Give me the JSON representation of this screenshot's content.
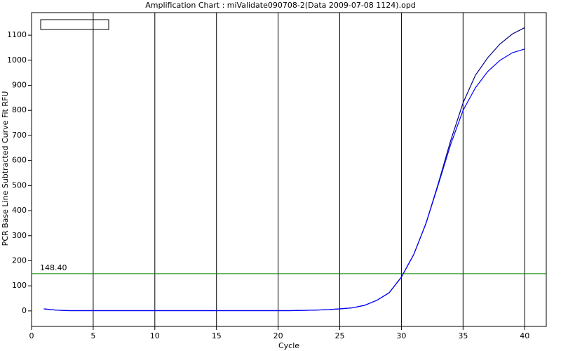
{
  "chart_data": {
    "type": "line",
    "title": "Amplification Chart : miValidate090708-2(Data 2009-07-08 1124).opd",
    "x_label": "Cycle",
    "y_label": "PCR Base Line Subtracted Curve Fit RFU",
    "x": [
      1,
      2,
      3,
      4,
      5,
      6,
      7,
      8,
      9,
      10,
      11,
      12,
      13,
      14,
      15,
      16,
      17,
      18,
      19,
      20,
      21,
      22,
      23,
      24,
      25,
      26,
      27,
      28,
      29,
      30,
      31,
      32,
      33,
      34,
      35,
      36,
      37,
      38,
      39,
      40
    ],
    "series": [
      {
        "color": "#000080",
        "values": [
          8,
          3,
          1,
          1,
          1,
          1,
          1,
          1,
          1,
          1,
          1,
          1,
          1,
          1,
          1,
          1,
          1,
          1,
          1,
          1,
          1,
          2,
          3,
          5,
          8,
          12,
          22,
          42,
          72,
          135,
          225,
          350,
          510,
          680,
          830,
          940,
          1010,
          1065,
          1105,
          1130
        ]
      },
      {
        "color": "#0000ff",
        "values": [
          8,
          3,
          1,
          1,
          1,
          1,
          1,
          1,
          1,
          1,
          1,
          1,
          1,
          1,
          1,
          1,
          1,
          1,
          1,
          1,
          1,
          2,
          3,
          5,
          8,
          12,
          22,
          42,
          72,
          135,
          225,
          350,
          505,
          665,
          800,
          890,
          955,
          1000,
          1030,
          1045
        ]
      }
    ],
    "threshold": {
      "value": 148.4,
      "label": "148.40",
      "color": "#008000"
    },
    "xlim": [
      0,
      41.75
    ],
    "ylim": [
      -62,
      1190
    ],
    "xticks": [
      0,
      5,
      10,
      15,
      20,
      25,
      30,
      35,
      40
    ],
    "yticks": [
      0,
      100,
      200,
      300,
      400,
      500,
      600,
      700,
      800,
      900,
      1000,
      1100
    ],
    "grid": true
  }
}
